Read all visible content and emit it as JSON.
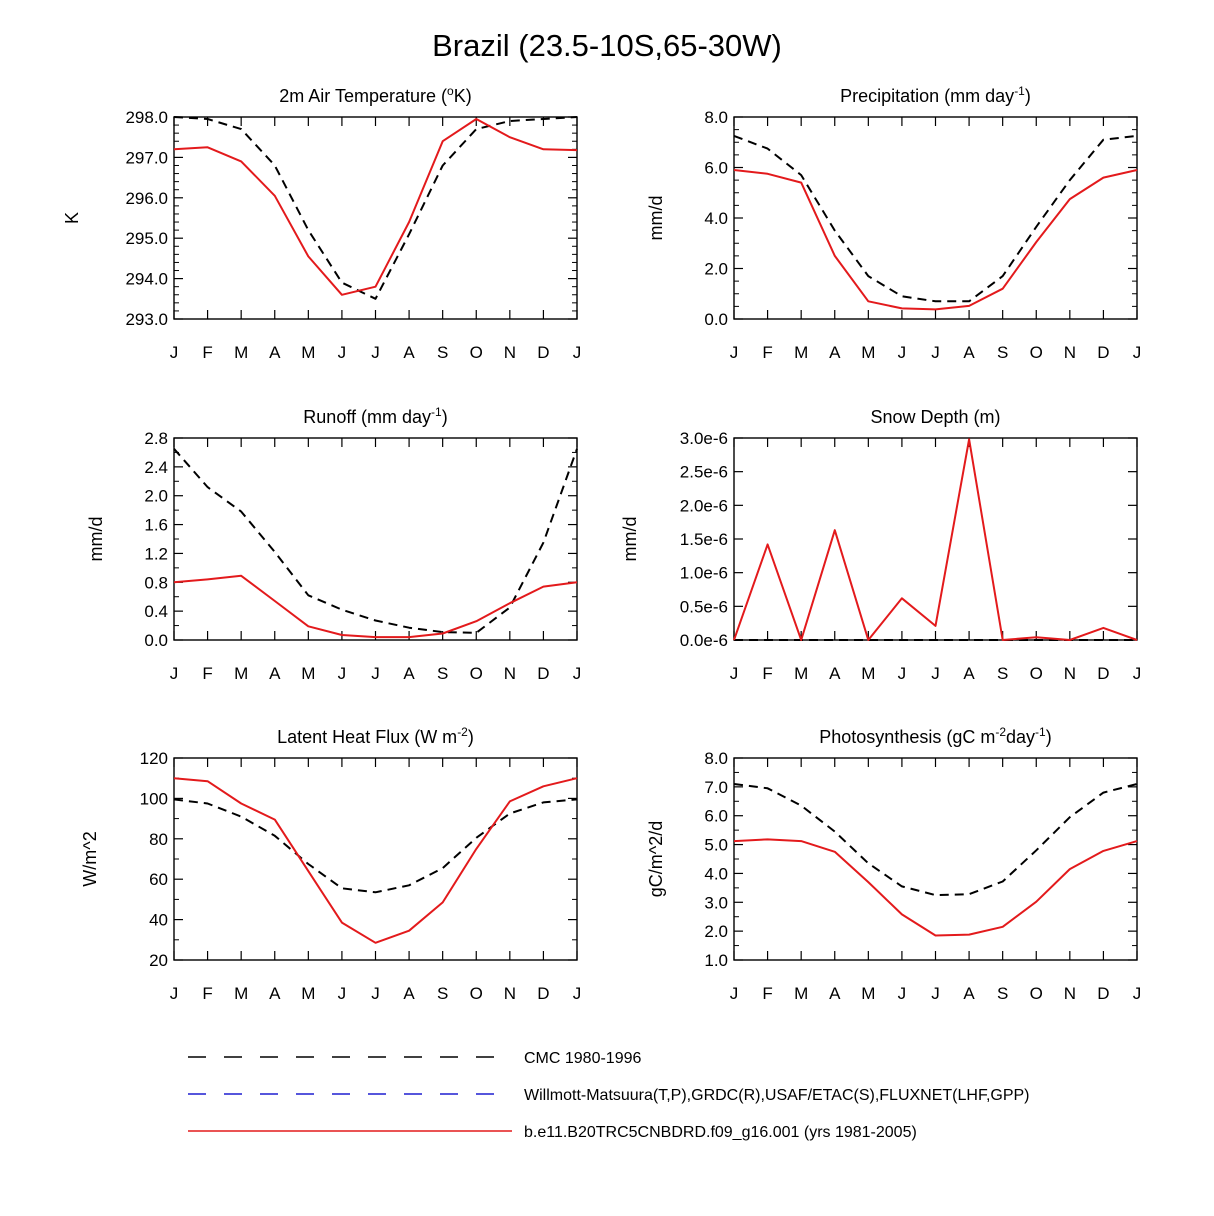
{
  "figure": {
    "title": "Brazil (23.5-10S,65-30W)"
  },
  "legend": [
    {
      "label": "CMC 1980-1996",
      "color": "#000000",
      "dash": "dashed"
    },
    {
      "label": "Willmott-Matsuura(T,P),GRDC(R),USAF/ETAC(S),FLUXNET(LHF,GPP)",
      "color": "#1f1fd0",
      "dash": "dashed"
    },
    {
      "label": "b.e11.B20TRC5CNBDRD.f09_g16.001 (yrs 1981-2005)",
      "color": "#e31a1c",
      "dash": "solid"
    }
  ],
  "chart_data": [
    {
      "type": "line",
      "title": "2m Air Temperature (oK)",
      "title_parts": {
        "pre": "2m Air Temperature (",
        "sup": "o",
        "post": "K)"
      },
      "ylabel": "K",
      "categories": [
        "J",
        "F",
        "M",
        "A",
        "M",
        "J",
        "J",
        "A",
        "S",
        "O",
        "N",
        "D",
        "J"
      ],
      "ylim": [
        293.0,
        298.0
      ],
      "yticks": [
        "293.0",
        "294.0",
        "295.0",
        "296.0",
        "297.0",
        "298.0"
      ],
      "yminor_count": 4,
      "series": [
        {
          "name": "CMC 1980-1996",
          "style": "dashed",
          "color": "#000000",
          "values": [
            298.0,
            297.95,
            297.7,
            296.8,
            295.2,
            293.9,
            293.5,
            295.1,
            296.8,
            297.7,
            297.9,
            297.95,
            298.0
          ]
        },
        {
          "name": "b.e11.B20TRC5CNBDRD.f09_g16.001 (yrs 1981-2005)",
          "style": "solid",
          "color": "#e31a1c",
          "values": [
            297.2,
            297.25,
            296.9,
            296.05,
            294.55,
            293.6,
            293.8,
            295.4,
            297.4,
            297.95,
            297.5,
            297.2,
            297.18
          ]
        }
      ]
    },
    {
      "type": "line",
      "title": "Precipitation (mm day-1)",
      "title_parts": {
        "pre": "Precipitation (mm day",
        "sup": "-1",
        "post": ")"
      },
      "ylabel": "mm/d",
      "categories": [
        "J",
        "F",
        "M",
        "A",
        "M",
        "J",
        "J",
        "A",
        "S",
        "O",
        "N",
        "D",
        "J"
      ],
      "ylim": [
        0.0,
        8.0
      ],
      "yticks": [
        "0.0",
        "2.0",
        "4.0",
        "6.0",
        "8.0"
      ],
      "yminor_count": 3,
      "series": [
        {
          "name": "CMC 1980-1996",
          "style": "dashed",
          "color": "#000000",
          "values": [
            7.25,
            6.75,
            5.7,
            3.5,
            1.7,
            0.9,
            0.7,
            0.7,
            1.7,
            3.65,
            5.5,
            7.1,
            7.25
          ]
        },
        {
          "name": "b.e11.B20TRC5CNBDRD.f09_g16.001 (yrs 1981-2005)",
          "style": "solid",
          "color": "#e31a1c",
          "values": [
            5.9,
            5.75,
            5.4,
            2.5,
            0.7,
            0.42,
            0.38,
            0.52,
            1.2,
            3.05,
            4.75,
            5.6,
            5.9
          ]
        }
      ]
    },
    {
      "type": "line",
      "title": "Runoff (mm day-1)",
      "title_parts": {
        "pre": "Runoff (mm day",
        "sup": "-1",
        "post": ")"
      },
      "ylabel": "mm/d",
      "categories": [
        "J",
        "F",
        "M",
        "A",
        "M",
        "J",
        "J",
        "A",
        "S",
        "O",
        "N",
        "D",
        "J"
      ],
      "ylim": [
        0.0,
        2.8
      ],
      "yticks": [
        "0.0",
        "0.4",
        "0.8",
        "1.2",
        "1.6",
        "2.0",
        "2.4",
        "2.8"
      ],
      "yminor_count": 1,
      "series": [
        {
          "name": "CMC 1980-1996",
          "style": "dashed",
          "color": "#000000",
          "values": [
            2.65,
            2.12,
            1.78,
            1.22,
            0.62,
            0.42,
            0.27,
            0.17,
            0.11,
            0.1,
            0.45,
            1.35,
            2.65
          ]
        },
        {
          "name": "b.e11.B20TRC5CNBDRD.f09_g16.001 (yrs 1981-2005)",
          "style": "solid",
          "color": "#e31a1c",
          "values": [
            0.8,
            0.84,
            0.89,
            0.54,
            0.19,
            0.07,
            0.04,
            0.04,
            0.09,
            0.26,
            0.51,
            0.74,
            0.8
          ]
        }
      ]
    },
    {
      "type": "line",
      "title": "Snow Depth (m)",
      "title_parts": {
        "pre": "Snow Depth (m)",
        "sup": "",
        "post": ""
      },
      "ylabel": "mm/d",
      "categories": [
        "J",
        "F",
        "M",
        "A",
        "M",
        "J",
        "J",
        "A",
        "S",
        "O",
        "N",
        "D",
        "J"
      ],
      "ylim": [
        0.0,
        3.0
      ],
      "yticks": [
        "0.0e-6",
        "0.5e-6",
        "1.0e-6",
        "1.5e-6",
        "2.0e-6",
        "2.5e-6",
        "3.0e-6"
      ],
      "yminor_count": 0,
      "yunit_note": "values in 1e-6",
      "series": [
        {
          "name": "CMC 1980-1996",
          "style": "dashed",
          "color": "#000000",
          "values": [
            0,
            0,
            0,
            0,
            0,
            0,
            0,
            0,
            0,
            0,
            0,
            0,
            0
          ]
        },
        {
          "name": "b.e11.B20TRC5CNBDRD.f09_g16.001 (yrs 1981-2005)",
          "style": "solid",
          "color": "#e31a1c",
          "values": [
            0.0,
            1.42,
            0.0,
            1.63,
            0.0,
            0.62,
            0.21,
            2.98,
            0.0,
            0.04,
            0.0,
            0.18,
            0.0
          ]
        }
      ]
    },
    {
      "type": "line",
      "title": "Latent Heat Flux (W m-2)",
      "title_parts": {
        "pre": "Latent Heat Flux (W m",
        "sup": "-2",
        "post": ")"
      },
      "ylabel": "W/m^2",
      "categories": [
        "J",
        "F",
        "M",
        "A",
        "M",
        "J",
        "J",
        "A",
        "S",
        "O",
        "N",
        "D",
        "J"
      ],
      "ylim": [
        20,
        120
      ],
      "yticks": [
        "20",
        "40",
        "60",
        "80",
        "100",
        "120"
      ],
      "yminor_count": 1,
      "series": [
        {
          "name": "CMC 1980-1996",
          "style": "dashed",
          "color": "#000000",
          "values": [
            99.5,
            97.5,
            91.0,
            81.5,
            67.5,
            55.5,
            53.5,
            57.0,
            65.5,
            80.5,
            92.5,
            98.0,
            99.5
          ]
        },
        {
          "name": "b.e11.B20TRC5CNBDRD.f09_g16.001 (yrs 1981-2005)",
          "style": "solid",
          "color": "#e31a1c",
          "values": [
            110.0,
            108.5,
            97.5,
            89.5,
            64.0,
            38.5,
            28.5,
            34.5,
            48.5,
            75.0,
            98.5,
            106.0,
            110.0
          ]
        }
      ]
    },
    {
      "type": "line",
      "title": "Photosynthesis (gC m-2day-1)",
      "title_parts": {
        "pre": "Photosynthesis (gC m",
        "sup": "-2",
        "mid": "day",
        "sup2": "-1",
        "post": ")"
      },
      "ylabel": "gC/m^2/d",
      "categories": [
        "J",
        "F",
        "M",
        "A",
        "M",
        "J",
        "J",
        "A",
        "S",
        "O",
        "N",
        "D",
        "J"
      ],
      "ylim": [
        1.0,
        8.0
      ],
      "yticks": [
        "1.0",
        "2.0",
        "3.0",
        "4.0",
        "5.0",
        "6.0",
        "7.0",
        "8.0"
      ],
      "yminor_count": 1,
      "series": [
        {
          "name": "CMC 1980-1996",
          "style": "dashed",
          "color": "#000000",
          "values": [
            7.1,
            6.95,
            6.35,
            5.45,
            4.35,
            3.55,
            3.25,
            3.28,
            3.72,
            4.8,
            5.95,
            6.8,
            7.1
          ]
        },
        {
          "name": "b.e11.B20TRC5CNBDRD.f09_g16.001 (yrs 1981-2005)",
          "style": "solid",
          "color": "#e31a1c",
          "values": [
            5.12,
            5.18,
            5.12,
            4.75,
            3.7,
            2.58,
            1.85,
            1.88,
            2.15,
            3.02,
            4.15,
            4.78,
            5.12
          ]
        }
      ]
    }
  ]
}
